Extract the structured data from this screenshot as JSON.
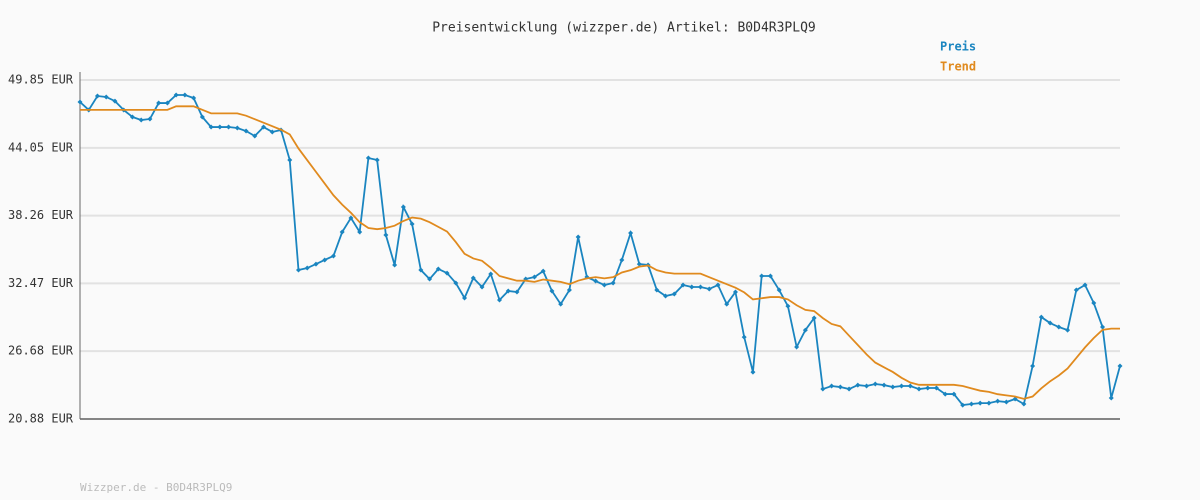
{
  "chart_data": {
    "type": "line",
    "title": "Preisentwicklung (wizzper.de) Artikel: B0D4R3PLQ9",
    "footer": "Wizzper.de - B0D4R3PLQ9",
    "ylim": [
      20.88,
      49.85
    ],
    "yticks": [
      {
        "value": 20.88,
        "label": "20.88 EUR"
      },
      {
        "value": 26.68,
        "label": "26.68 EUR"
      },
      {
        "value": 32.47,
        "label": "32.47 EUR"
      },
      {
        "value": 38.26,
        "label": "38.26 EUR"
      },
      {
        "value": 44.05,
        "label": "44.05 EUR"
      },
      {
        "value": 49.85,
        "label": "49.85 EUR"
      }
    ],
    "grid": true,
    "series": [
      {
        "name": "Preis",
        "color": "#1a85c0",
        "markers": true,
        "values": [
          47.97,
          47.29,
          48.48,
          48.4,
          48.05,
          47.29,
          46.69,
          46.43,
          46.52,
          47.88,
          47.88,
          48.57,
          48.57,
          48.31,
          46.69,
          45.83,
          45.83,
          45.83,
          45.75,
          45.49,
          45.06,
          45.83,
          45.41,
          45.58,
          43.01,
          33.61,
          33.78,
          34.12,
          34.47,
          34.81,
          36.86,
          38.06,
          36.86,
          43.18,
          43.01,
          36.6,
          34.04,
          39.0,
          37.54,
          33.61,
          32.84,
          33.7,
          33.35,
          32.5,
          31.22,
          32.93,
          32.16,
          33.27,
          31.05,
          31.82,
          31.73,
          32.84,
          33.01,
          33.52,
          31.82,
          30.7,
          31.9,
          36.43,
          33.01,
          32.67,
          32.33,
          32.5,
          34.47,
          36.77,
          34.12,
          34.04,
          31.9,
          31.39,
          31.56,
          32.33,
          32.16,
          32.16,
          31.99,
          32.33,
          30.7,
          31.73,
          27.88,
          24.89,
          33.1,
          33.1,
          31.9,
          30.53,
          27.03,
          28.48,
          29.51,
          23.44,
          23.7,
          23.61,
          23.44,
          23.78,
          23.7,
          23.87,
          23.78,
          23.61,
          23.7,
          23.7,
          23.44,
          23.53,
          23.53,
          23.01,
          23.01,
          22.07,
          22.16,
          22.24,
          22.24,
          22.41,
          22.33,
          22.59,
          22.16,
          25.41,
          29.59,
          29.08,
          28.74,
          28.48,
          31.9,
          32.33,
          30.79,
          28.74,
          22.67,
          25.41
        ]
      },
      {
        "name": "Trend",
        "color": "#e08a1e",
        "markers": false,
        "values": [
          47.3,
          47.3,
          47.3,
          47.3,
          47.3,
          47.3,
          47.3,
          47.3,
          47.3,
          47.3,
          47.3,
          47.6,
          47.6,
          47.6,
          47.3,
          47.0,
          47.0,
          47.0,
          47.0,
          46.8,
          46.5,
          46.2,
          45.9,
          45.6,
          45.2,
          44.0,
          43.0,
          42.0,
          41.0,
          40.0,
          39.2,
          38.5,
          37.7,
          37.2,
          37.1,
          37.2,
          37.4,
          37.8,
          38.1,
          38.0,
          37.7,
          37.3,
          36.9,
          36.0,
          35.0,
          34.6,
          34.4,
          33.8,
          33.1,
          32.9,
          32.7,
          32.7,
          32.6,
          32.8,
          32.7,
          32.6,
          32.4,
          32.7,
          32.9,
          33.0,
          32.9,
          33.0,
          33.4,
          33.6,
          33.9,
          34.0,
          33.6,
          33.4,
          33.3,
          33.3,
          33.3,
          33.3,
          33.0,
          32.7,
          32.4,
          32.1,
          31.7,
          31.1,
          31.2,
          31.3,
          31.3,
          31.1,
          30.6,
          30.2,
          30.1,
          29.5,
          29.0,
          28.8,
          28.0,
          27.2,
          26.4,
          25.7,
          25.3,
          24.9,
          24.4,
          24.0,
          23.8,
          23.8,
          23.8,
          23.8,
          23.8,
          23.7,
          23.5,
          23.3,
          23.2,
          23.0,
          22.9,
          22.8,
          22.6,
          22.8,
          23.5,
          24.1,
          24.6,
          25.2,
          26.1,
          27.0,
          27.8,
          28.5,
          28.6,
          28.6
        ]
      }
    ]
  }
}
